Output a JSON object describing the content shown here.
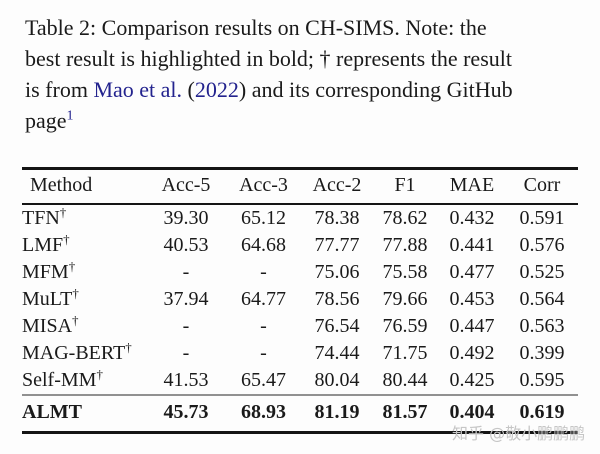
{
  "caption": {
    "line1": "Table 2: Comparison results on CH-SIMS. Note: the",
    "line2": "best result is highlighted in bold; † represents the result",
    "line3_pre": "is from ",
    "line3_cite": "Mao et al.",
    "line3_open": " (",
    "line3_year": "2022",
    "line3_close": ") and its corresponding GitHub",
    "line4_word": "page",
    "line4_footnote": "1"
  },
  "table": {
    "headers": [
      "Method",
      "Acc-5",
      "Acc-3",
      "Acc-2",
      "F1",
      "MAE",
      "Corr"
    ],
    "rows": [
      {
        "method": "TFN",
        "dagger": "†",
        "values": [
          "39.30",
          "65.12",
          "78.38",
          "78.62",
          "0.432",
          "0.591"
        ]
      },
      {
        "method": "LMF",
        "dagger": "†",
        "values": [
          "40.53",
          "64.68",
          "77.77",
          "77.88",
          "0.441",
          "0.576"
        ]
      },
      {
        "method": "MFM",
        "dagger": "†",
        "values": [
          "-",
          "-",
          "75.06",
          "75.58",
          "0.477",
          "0.525"
        ]
      },
      {
        "method": "MuLT",
        "dagger": "†",
        "values": [
          "37.94",
          "64.77",
          "78.56",
          "79.66",
          "0.453",
          "0.564"
        ]
      },
      {
        "method": "MISA",
        "dagger": "†",
        "values": [
          "-",
          "-",
          "76.54",
          "76.59",
          "0.447",
          "0.563"
        ]
      },
      {
        "method": "MAG-BERT",
        "dagger": "†",
        "values": [
          "-",
          "-",
          "74.44",
          "71.75",
          "0.492",
          "0.399"
        ]
      },
      {
        "method": "Self-MM",
        "dagger": "†",
        "values": [
          "41.53",
          "65.47",
          "80.04",
          "80.44",
          "0.425",
          "0.595"
        ]
      }
    ],
    "best_row": {
      "method": "ALMT",
      "dagger": "",
      "values": [
        "45.73",
        "68.93",
        "81.19",
        "81.57",
        "0.404",
        "0.619"
      ]
    }
  },
  "watermark": "知乎 @敬小鹏鹏鹏",
  "colors": {
    "text": "#1a1a1a",
    "link": "#23238e",
    "rule_dark": "#151515",
    "rule_gray": "#919191",
    "watermark": "#c6c6c6"
  }
}
